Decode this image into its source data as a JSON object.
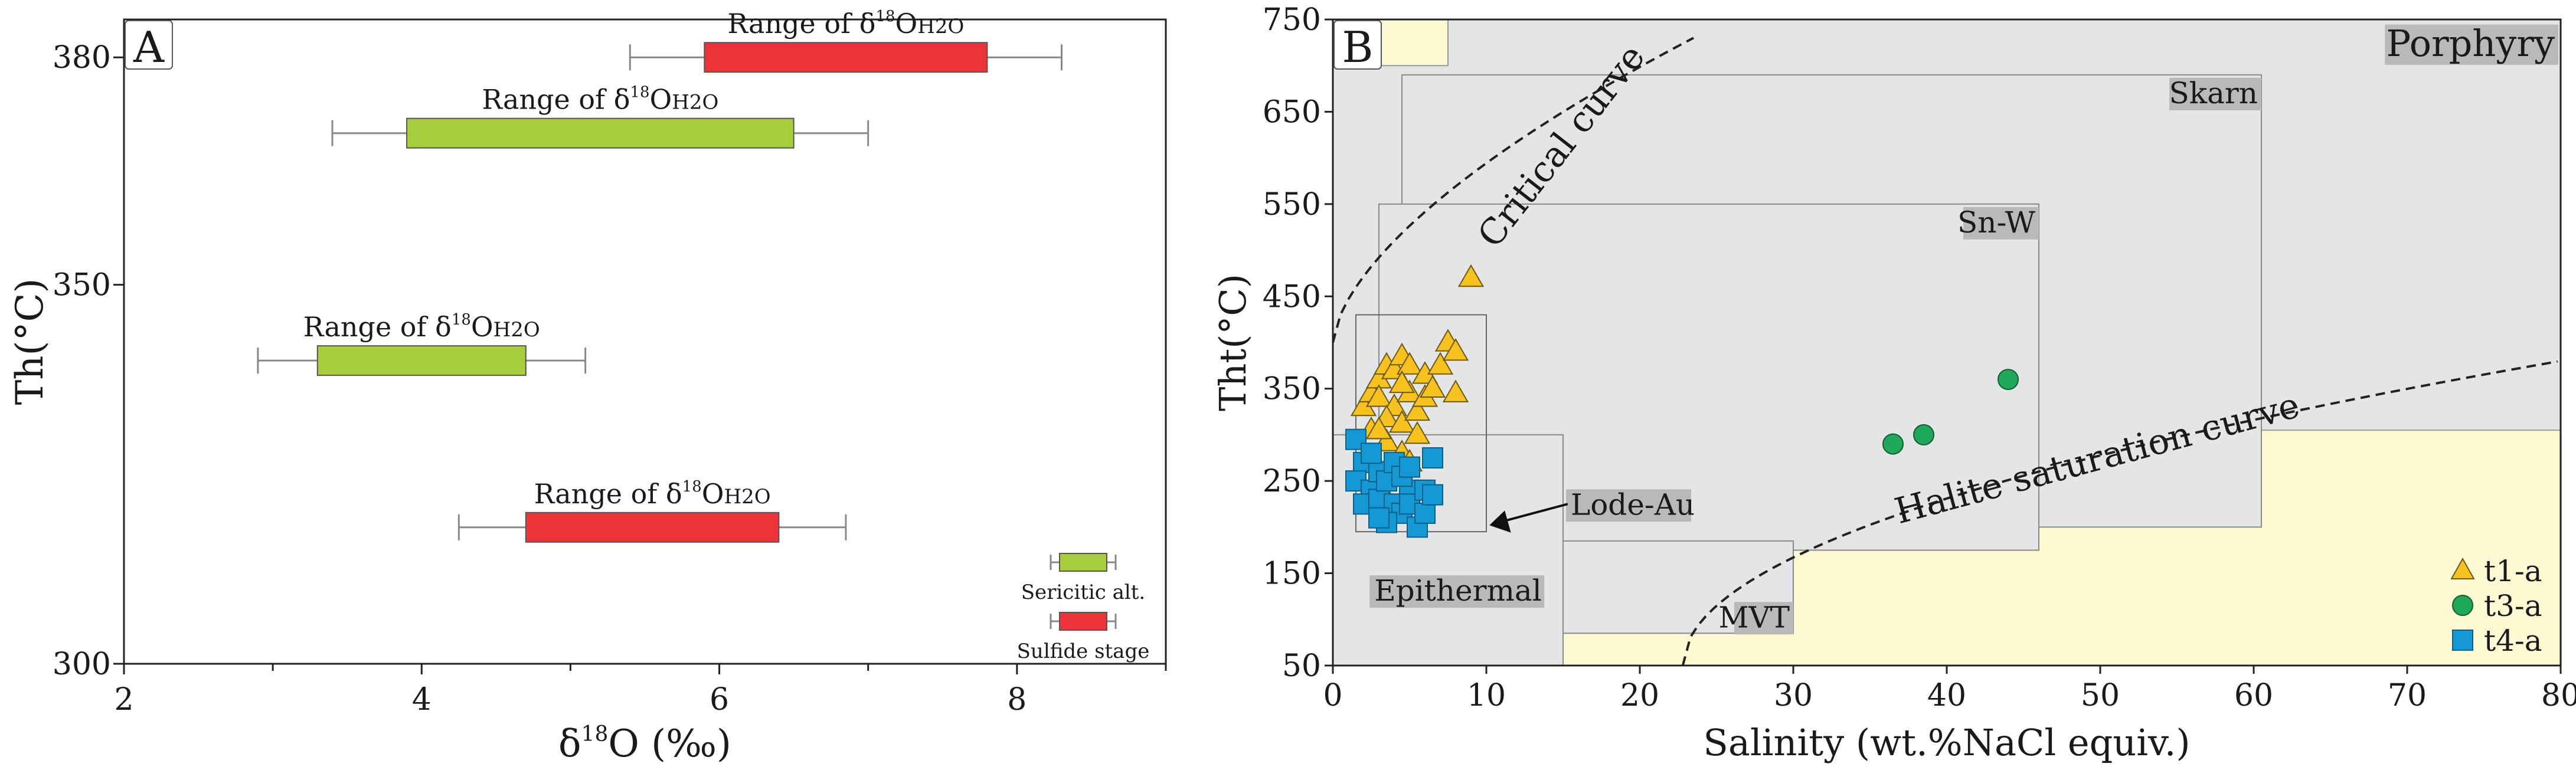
{
  "chart_data": [
    {
      "panel_label": "A",
      "type": "range",
      "xlabel_main": "δ",
      "xlabel_sup": "18",
      "xlabel_rest": "O (‰)",
      "ylabel": "Th(°C)",
      "xlim": [
        2,
        9
      ],
      "ylim": [
        300,
        385
      ],
      "x_ticks": [
        2,
        4,
        6,
        8
      ],
      "x_minor_ticks": [
        3,
        5,
        7,
        9
      ],
      "y_ticks": [
        300,
        350,
        380
      ],
      "bars": [
        {
          "label_pre": "Range of δ",
          "label_sup": "18",
          "label_post": "O",
          "label_sub": "H2O",
          "y": 380,
          "whisker_low": 5.4,
          "box_low": 5.9,
          "box_high": 7.8,
          "whisker_high": 8.3,
          "color": "#ee3338"
        },
        {
          "label_pre": "Range of δ",
          "label_sup": "18",
          "label_post": "O",
          "label_sub": "H2O",
          "y": 370,
          "whisker_low": 3.4,
          "box_low": 3.9,
          "box_high": 6.5,
          "whisker_high": 7.0,
          "color": "#a6cd3c"
        },
        {
          "label_pre": "Range of δ",
          "label_sup": "18",
          "label_post": "O",
          "label_sub": "H2O",
          "y": 340,
          "whisker_low": 2.9,
          "box_low": 3.3,
          "box_high": 4.7,
          "whisker_high": 5.1,
          "color": "#a6cd3c"
        },
        {
          "label_pre": "Range of δ",
          "label_sup": "18",
          "label_post": "O",
          "label_sub": "H2O",
          "y": 318,
          "whisker_low": 4.25,
          "box_low": 4.7,
          "box_high": 6.4,
          "whisker_high": 6.85,
          "color": "#ee3338"
        }
      ],
      "legend": [
        {
          "label": "Sericitic alt.",
          "color": "#a6cd3c"
        },
        {
          "label": "Sulfide stage",
          "color": "#ee3338"
        }
      ]
    },
    {
      "panel_label": "B",
      "type": "scatter",
      "xlabel": "Salinity (wt.%NaCl equiv.)",
      "ylabel": "Tht(°C)",
      "xlim": [
        0,
        80
      ],
      "ylim": [
        50,
        750
      ],
      "x_ticks": [
        0,
        10,
        20,
        30,
        40,
        50,
        60,
        70,
        80
      ],
      "y_ticks": [
        50,
        150,
        250,
        350,
        450,
        550,
        650,
        750
      ],
      "fields": [
        {
          "name": "Porphyry",
          "x0": 7.5,
          "x1": 80,
          "y0": 50,
          "y1": 750,
          "label_pos": "top-right"
        },
        {
          "name": "Skarn",
          "x0": 4.5,
          "x1": 60.5,
          "y0": 200,
          "y1": 690,
          "label_pos": "top-right"
        },
        {
          "name": "Sn-W",
          "x0": 3,
          "x1": 46,
          "y0": 175,
          "y1": 550,
          "label_pos": "top-right"
        },
        {
          "name": "Lode-Au",
          "x0": 2,
          "x1": 15,
          "y0": 110,
          "y1": 295,
          "label_pos": "right"
        },
        {
          "name": "Epithermal",
          "x0": 0,
          "x1": 15,
          "y0": 50,
          "y1": 300,
          "label_pos": "bottom"
        },
        {
          "name": "MVT",
          "x0": 15,
          "x1": 30,
          "y0": 85,
          "y1": 185,
          "label_pos": "bottom-right"
        }
      ],
      "inset_box": {
        "x0": 1.5,
        "x1": 10,
        "y0": 195,
        "y1": 430
      },
      "curves": [
        {
          "name": "Critical curve"
        },
        {
          "name": "Halite saturation curve"
        }
      ],
      "series": [
        {
          "name": "t1-a",
          "marker": "triangle",
          "color": "#f7c11e",
          "points": [
            [
              2,
              330
            ],
            [
              2.5,
              345
            ],
            [
              3,
              360
            ],
            [
              3.5,
              375
            ],
            [
              4,
              370
            ],
            [
              4.5,
              385
            ],
            [
              5,
              375
            ],
            [
              3,
              340
            ],
            [
              4,
              330
            ],
            [
              5,
              345
            ],
            [
              2.5,
              305
            ],
            [
              3.5,
              318
            ],
            [
              4.5,
              312
            ],
            [
              5.5,
              325
            ],
            [
              6,
              340
            ],
            [
              3.5,
              292
            ],
            [
              4.5,
              280
            ],
            [
              5,
              270
            ],
            [
              4,
              260
            ],
            [
              3,
              245
            ],
            [
              6,
              365
            ],
            [
              6.5,
              350
            ],
            [
              7,
              375
            ],
            [
              7.5,
              400
            ],
            [
              8,
              390
            ],
            [
              8,
              345
            ],
            [
              9,
              470
            ],
            [
              4.5,
              355
            ],
            [
              3,
              305
            ],
            [
              5.5,
              300
            ]
          ]
        },
        {
          "name": "t3-a",
          "marker": "circle",
          "color": "#1fa75a",
          "points": [
            [
              36.5,
              290
            ],
            [
              38.5,
              300
            ],
            [
              44,
              360
            ]
          ]
        },
        {
          "name": "t4-a",
          "marker": "square",
          "color": "#1499d4",
          "points": [
            [
              1.5,
              295
            ],
            [
              2,
              270
            ],
            [
              1.5,
              250
            ],
            [
              2.5,
              240
            ],
            [
              2,
              225
            ],
            [
              3,
              260
            ],
            [
              3,
              230
            ],
            [
              3.5,
              250
            ],
            [
              4,
              225
            ],
            [
              4.5,
              215
            ],
            [
              4,
              270
            ],
            [
              5,
              240
            ],
            [
              5.5,
              200
            ],
            [
              5,
              225
            ],
            [
              6,
              215
            ],
            [
              6,
              240
            ],
            [
              6.5,
              275
            ],
            [
              6.5,
              235
            ],
            [
              3.5,
              205
            ],
            [
              2.5,
              280
            ],
            [
              4.5,
              255
            ],
            [
              5,
              265
            ],
            [
              3,
              210
            ]
          ]
        }
      ]
    }
  ]
}
